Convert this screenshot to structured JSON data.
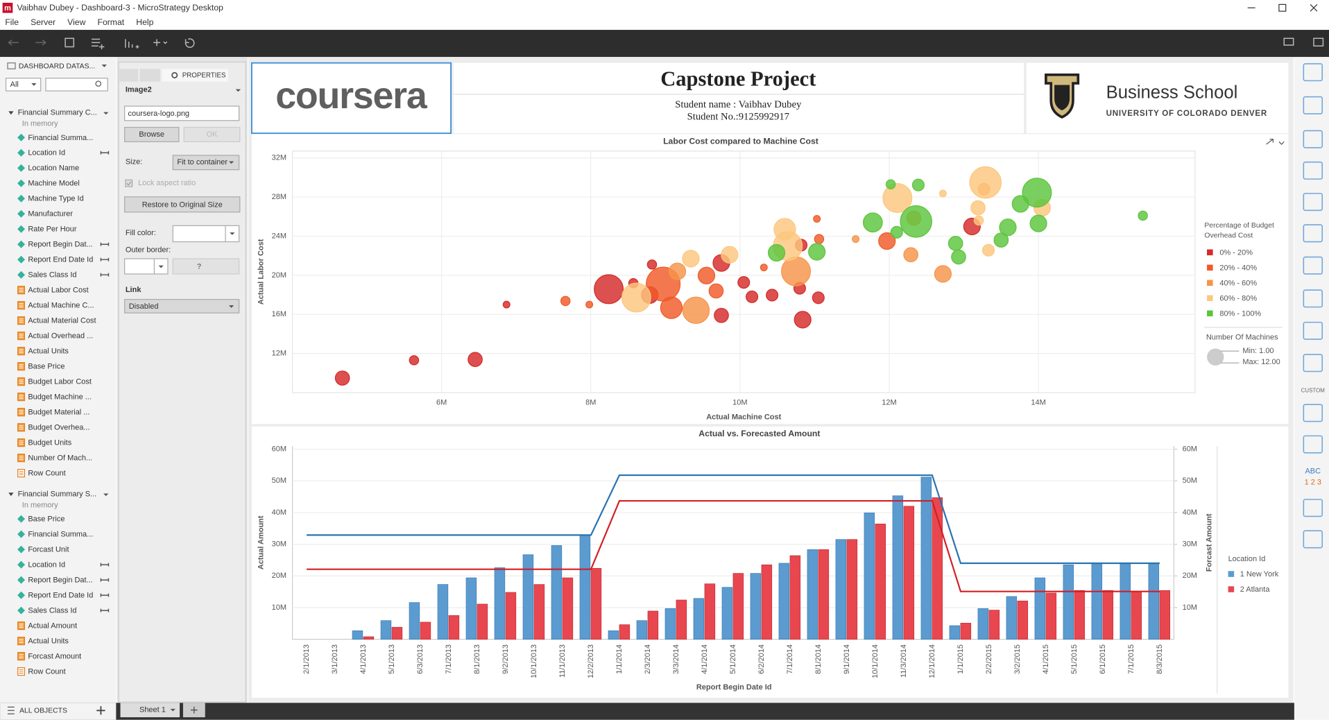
{
  "window": {
    "title": "Vaibhav Dubey - Dashboard-3 - MicroStrategy Desktop",
    "menu": [
      "File",
      "Server",
      "View",
      "Format",
      "Help"
    ]
  },
  "datasets_panel": {
    "title": "DASHBOARD DATAS...",
    "filter": "All",
    "footer": "ALL OBJECTS",
    "datasets": [
      {
        "name": "Financial Summary C...",
        "status": "In memory",
        "items": [
          {
            "label": "Financial Summa...",
            "kind": "attribute",
            "linked": false
          },
          {
            "label": "Location Id",
            "kind": "attribute",
            "linked": true
          },
          {
            "label": "Location Name",
            "kind": "attribute",
            "linked": false
          },
          {
            "label": "Machine Model",
            "kind": "attribute",
            "linked": false
          },
          {
            "label": "Machine Type Id",
            "kind": "attribute",
            "linked": false
          },
          {
            "label": "Manufacturer",
            "kind": "attribute",
            "linked": false
          },
          {
            "label": "Rate Per Hour",
            "kind": "attribute",
            "linked": false
          },
          {
            "label": "Report Begin Dat...",
            "kind": "attribute",
            "linked": true
          },
          {
            "label": "Report End Date Id",
            "kind": "attribute",
            "linked": true
          },
          {
            "label": "Sales Class Id",
            "kind": "attribute",
            "linked": true
          },
          {
            "label": "Actual Labor Cost",
            "kind": "metric",
            "linked": false
          },
          {
            "label": "Actual Machine C...",
            "kind": "metric",
            "linked": false
          },
          {
            "label": "Actual Material Cost",
            "kind": "metric",
            "linked": false
          },
          {
            "label": "Actual Overhead ...",
            "kind": "metric",
            "linked": false
          },
          {
            "label": "Actual Units",
            "kind": "metric",
            "linked": false
          },
          {
            "label": "Base Price",
            "kind": "metric",
            "linked": false
          },
          {
            "label": "Budget Labor Cost",
            "kind": "metric",
            "linked": false
          },
          {
            "label": "Budget Machine ...",
            "kind": "metric",
            "linked": false
          },
          {
            "label": "Budget Material ...",
            "kind": "metric",
            "linked": false
          },
          {
            "label": "Budget Overhea...",
            "kind": "metric",
            "linked": false
          },
          {
            "label": "Budget Units",
            "kind": "metric",
            "linked": false
          },
          {
            "label": "Number Of Mach...",
            "kind": "metric",
            "linked": false
          },
          {
            "label": "Row Count",
            "kind": "count",
            "linked": false
          }
        ]
      },
      {
        "name": "Financial Summary S...",
        "status": "In memory",
        "items": [
          {
            "label": "Base Price",
            "kind": "attribute",
            "linked": false
          },
          {
            "label": "Financial Summa...",
            "kind": "attribute",
            "linked": false
          },
          {
            "label": "Forcast Unit",
            "kind": "attribute",
            "linked": false
          },
          {
            "label": "Location Id",
            "kind": "attribute",
            "linked": true
          },
          {
            "label": "Report Begin Dat...",
            "kind": "attribute",
            "linked": true
          },
          {
            "label": "Report End Date Id",
            "kind": "attribute",
            "linked": true
          },
          {
            "label": "Sales Class Id",
            "kind": "attribute",
            "linked": true
          },
          {
            "label": "Actual Amount",
            "kind": "metric",
            "linked": false
          },
          {
            "label": "Actual Units",
            "kind": "metric",
            "linked": false
          },
          {
            "label": "Forcast Amount",
            "kind": "metric",
            "linked": false
          },
          {
            "label": "Row Count",
            "kind": "count",
            "linked": false
          }
        ]
      }
    ]
  },
  "properties_panel": {
    "tab": "PROPERTIES",
    "object": "Image2",
    "file": "coursera-logo.png",
    "browse": "Browse",
    "ok": "OK",
    "size_label": "Size:",
    "size_value": "Fit to container",
    "lock": "Lock aspect ratio",
    "restore": "Restore to Original Size",
    "fill_label": "Fill color:",
    "border_label": "Outer border:",
    "border_value": "?",
    "link_label": "Link",
    "link_value": "Disabled"
  },
  "header": {
    "logo": "coursera",
    "title": "Capstone Project",
    "student_name": "Student name : Vaibhav Dubey",
    "student_no": "Student No.:9125992917",
    "school": "Business School",
    "university": "UNIVERSITY OF COLORADO DENVER"
  },
  "right_toolbar": {
    "custom": "CUSTOM",
    "abc": "ABC",
    "digits": "1 2 3"
  },
  "sheet_tab": "Sheet 1",
  "charts": [
    {
      "type": "bubble",
      "title": "Labor Cost compared to Machine Cost",
      "xlabel": "Actual Machine Cost",
      "ylabel": "Actual Labor Cost",
      "xlim": [
        4,
        16.1
      ],
      "ylim": [
        8,
        32.7
      ],
      "xticks": [
        {
          "value": 6,
          "label": "6M"
        },
        {
          "value": 8,
          "label": "8M"
        },
        {
          "value": 10,
          "label": "10M"
        },
        {
          "value": 12,
          "label": "12M"
        },
        {
          "value": 14,
          "label": "14M"
        }
      ],
      "yticks": [
        {
          "value": 12,
          "label": "12M"
        },
        {
          "value": 16,
          "label": "16M"
        },
        {
          "value": 20,
          "label": "20M"
        },
        {
          "value": 24,
          "label": "24M"
        },
        {
          "value": 28,
          "label": "28M"
        },
        {
          "value": 32,
          "label": "32M"
        }
      ],
      "grid": true,
      "legend_title": "Percentage of Budget Overhead Cost",
      "size_legend": {
        "title": "Number Of Machines",
        "min": {
          "value": 1,
          "label": "Min: 1.00"
        },
        "max": {
          "value": 12,
          "label": "Max: 12.00"
        }
      },
      "series": [
        {
          "name": "0% - 20%",
          "color": "#d42a2a",
          "x": [
            4.67,
            5.63,
            6.45,
            6.87,
            8.24,
            8.57,
            8.79,
            8.82,
            9.75,
            9.75,
            10.05,
            10.16,
            10.43,
            10.84,
            10.8,
            10.82,
            11.05,
            13.11
          ],
          "values": [
            9.49,
            11.31,
            11.39,
            17.0,
            18.58,
            19.19,
            17.98,
            21.1,
            21.26,
            15.9,
            19.27,
            17.8,
            17.97,
            15.46,
            18.67,
            23.08,
            17.7,
            24.99
          ],
          "sizes": [
            4,
            2,
            4,
            1,
            10,
            2,
            5,
            2,
            5,
            4,
            3,
            3,
            3,
            5,
            3,
            3,
            3,
            5
          ]
        },
        {
          "name": "20% - 40%",
          "color": "#f05a28",
          "x": [
            7.66,
            7.98,
            8.97,
            9.08,
            9.55,
            9.68,
            10.32,
            11.03,
            11.06,
            11.97
          ],
          "values": [
            17.37,
            17.0,
            19.1,
            16.68,
            19.97,
            18.4,
            20.8,
            25.77,
            23.7,
            23.5
          ],
          "sizes": [
            2,
            1,
            12,
            7,
            5,
            4,
            1,
            1,
            2,
            5
          ]
        },
        {
          "name": "40% - 60%",
          "color": "#f7944a",
          "x": [
            9.16,
            9.41,
            10.75,
            11.55,
            12.33,
            12.29,
            12.72,
            13.27
          ],
          "values": [
            20.4,
            16.42,
            20.4,
            23.7,
            25.85,
            22.1,
            20.14,
            28.8
          ],
          "sizes": [
            5,
            9,
            10,
            1,
            4,
            4,
            5,
            3
          ]
        },
        {
          "name": "60% - 80%",
          "color": "#fcc77e",
          "x": [
            8.61,
            9.34,
            9.86,
            10.6,
            10.64,
            12.11,
            12.72,
            13.19,
            13.2,
            13.29,
            13.33,
            14.05
          ],
          "values": [
            17.72,
            21.7,
            22.1,
            24.7,
            22.99,
            27.9,
            28.36,
            26.9,
            25.6,
            29.49,
            22.56,
            26.9
          ],
          "sizes": [
            10,
            5,
            5,
            7,
            10,
            10,
            1,
            4,
            2,
            11,
            3,
            5
          ]
        },
        {
          "name": "80% - 100%",
          "color": "#5cc43c",
          "x": [
            10.49,
            11.03,
            11.78,
            12.02,
            12.1,
            12.36,
            12.39,
            12.89,
            12.93,
            13.5,
            13.59,
            13.76,
            13.98,
            14.0,
            15.4
          ],
          "values": [
            22.3,
            22.4,
            25.4,
            29.3,
            24.4,
            25.5,
            29.23,
            23.26,
            21.87,
            23.6,
            24.9,
            27.3,
            28.45,
            25.3,
            26.1
          ],
          "sizes": [
            5,
            5,
            6,
            2,
            3,
            11,
            3,
            4,
            4,
            4,
            5,
            5,
            10,
            5,
            2
          ]
        }
      ]
    },
    {
      "type": "bar-line",
      "title": "Actual vs. Forecasted Amount",
      "xlabel": "Report Begin Date Id",
      "ylabel": "Actual Amount",
      "y2label": "Forcast Amount",
      "legend_title": "Location Id",
      "categories": [
        "2/1/2013",
        "3/1/2013",
        "4/1/2013",
        "5/1/2013",
        "6/3/2013",
        "7/1/2013",
        "8/1/2013",
        "9/2/2013",
        "10/1/2013",
        "11/1/2013",
        "12/2/2013",
        "1/1/2014",
        "2/3/2014",
        "3/3/2014",
        "4/1/2014",
        "5/1/2014",
        "6/2/2014",
        "7/1/2014",
        "8/1/2014",
        "9/1/2014",
        "10/1/2014",
        "11/3/2014",
        "12/1/2014",
        "1/1/2015",
        "2/2/2015",
        "3/2/2015",
        "4/1/2015",
        "5/1/2015",
        "6/1/2015",
        "7/1/2015",
        "8/3/2015"
      ],
      "ylim": [
        0,
        61
      ],
      "y2lim": [
        0,
        61
      ],
      "grid": true,
      "yticks": [
        {
          "value": 10,
          "label": "10M"
        },
        {
          "value": 20,
          "label": "20M"
        },
        {
          "value": 30,
          "label": "30M"
        },
        {
          "value": 40,
          "label": "40M"
        },
        {
          "value": 50,
          "label": "50M"
        },
        {
          "value": 60,
          "label": "60M"
        }
      ],
      "y2ticks": [
        {
          "value": 10,
          "label": "10M"
        },
        {
          "value": 20,
          "label": "20M"
        },
        {
          "value": 30,
          "label": "30M"
        },
        {
          "value": 40,
          "label": "40M"
        },
        {
          "value": 50,
          "label": "50M"
        },
        {
          "value": 60,
          "label": "60M"
        }
      ],
      "series": [
        {
          "name": "1 New York",
          "color": "#5b9bd0",
          "line_color": "#2a72b0",
          "values": [
            0,
            0,
            2.7,
            5.9,
            11.6,
            17.3,
            19.4,
            22.6,
            26.7,
            29.6,
            32.9,
            2.7,
            5.9,
            9.7,
            12.9,
            16.4,
            20.8,
            24.0,
            28.3,
            31.5,
            39.9,
            45.3,
            51.2,
            4.3,
            9.7,
            13.5,
            19.4,
            23.5,
            24.0,
            24.0,
            24.0
          ],
          "forecast": [
            32.9,
            32.9,
            32.9,
            32.9,
            32.9,
            32.9,
            32.9,
            32.9,
            32.9,
            32.9,
            32.9,
            51.8,
            51.8,
            51.8,
            51.8,
            51.8,
            51.8,
            51.8,
            51.8,
            51.8,
            51.8,
            51.8,
            51.8,
            24.0,
            24.0,
            24.0,
            24.0,
            24.0,
            24.0,
            24.0,
            24.0
          ]
        },
        {
          "name": "2 Atlanta",
          "color": "#e8474f",
          "line_color": "#d21f24",
          "values": [
            0,
            0,
            0.8,
            3.8,
            5.4,
            7.5,
            11.1,
            14.8,
            17.3,
            19.4,
            22.4,
            4.6,
            8.9,
            12.4,
            17.5,
            20.8,
            23.5,
            26.4,
            28.3,
            31.5,
            36.4,
            42.0,
            44.7,
            5.1,
            9.2,
            12.1,
            14.6,
            15.4,
            15.4,
            15.1,
            15.4
          ],
          "forecast": [
            22.1,
            22.1,
            22.1,
            22.1,
            22.1,
            22.1,
            22.1,
            22.1,
            22.1,
            22.1,
            22.1,
            43.7,
            43.7,
            43.7,
            43.7,
            43.7,
            43.7,
            43.7,
            43.7,
            43.7,
            43.7,
            43.7,
            43.7,
            15.1,
            15.1,
            15.1,
            15.1,
            15.1,
            15.1,
            15.1,
            15.1
          ]
        }
      ]
    }
  ]
}
